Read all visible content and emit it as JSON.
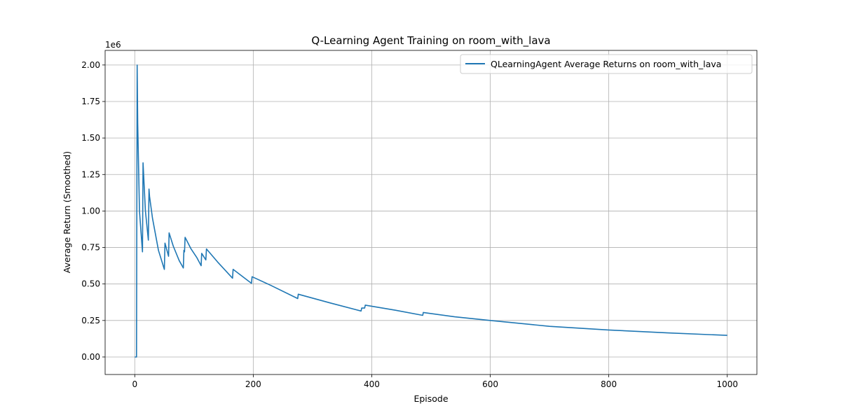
{
  "colors": {
    "series": "#1f77b4",
    "grid": "#b0b0b0",
    "axis": "#000000",
    "background": "#ffffff"
  },
  "chart_data": {
    "type": "line",
    "title": "Q-Learning Agent Training on room_with_lava",
    "xlabel": "Episode",
    "ylabel": "Average Return (Smoothed)",
    "y_scale_label": "1e6",
    "xlim": [
      -50,
      1050
    ],
    "ylim": [
      -0.12,
      2.1
    ],
    "x_ticks": [
      0,
      200,
      400,
      600,
      800,
      1000
    ],
    "x_tick_labels": [
      "0",
      "200",
      "400",
      "600",
      "800",
      "1000"
    ],
    "y_ticks": [
      0,
      0.25,
      0.5,
      0.75,
      1.0,
      1.25,
      1.5,
      1.75,
      2.0
    ],
    "y_tick_labels": [
      "0.00",
      "0.25",
      "0.50",
      "0.75",
      "1.00",
      "1.25",
      "1.50",
      "1.75",
      "2.00"
    ],
    "grid": true,
    "legend_position": "upper-right",
    "series": [
      {
        "name": "QLearningAgent Average Returns on room_with_lava",
        "x": [
          0,
          3,
          4,
          5,
          8,
          13,
          14,
          18,
          23,
          24,
          25,
          30,
          40,
          50,
          51,
          57,
          58,
          65,
          75,
          82,
          83,
          84,
          85,
          95,
          105,
          112,
          113,
          120,
          121,
          140,
          165,
          166,
          197,
          198,
          230,
          275,
          276,
          330,
          382,
          383,
          388,
          389,
          440,
          486,
          487,
          540,
          600,
          700,
          800,
          900,
          1000
        ],
        "y": [
          0,
          0,
          2.0,
          1.6,
          1.0,
          0.72,
          1.33,
          1.0,
          0.8,
          1.15,
          1.1,
          0.95,
          0.73,
          0.6,
          0.78,
          0.69,
          0.85,
          0.76,
          0.66,
          0.61,
          0.73,
          0.72,
          0.82,
          0.74,
          0.68,
          0.625,
          0.71,
          0.665,
          0.74,
          0.65,
          0.54,
          0.6,
          0.505,
          0.55,
          0.49,
          0.4,
          0.43,
          0.37,
          0.315,
          0.335,
          0.335,
          0.355,
          0.32,
          0.285,
          0.305,
          0.275,
          0.25,
          0.21,
          0.185,
          0.165,
          0.148
        ]
      }
    ]
  }
}
